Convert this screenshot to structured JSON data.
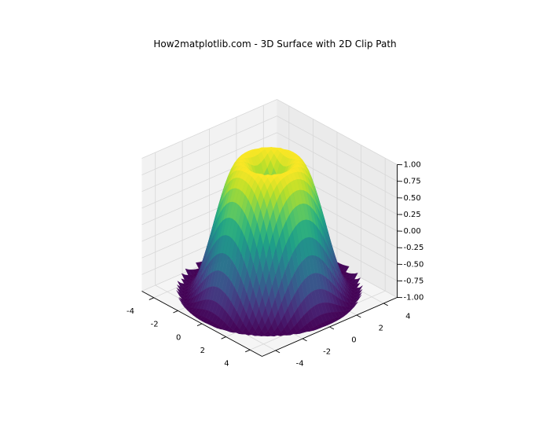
{
  "chart_data": {
    "type": "surface3d",
    "title": "How2matplotlib.com - 3D Surface with 2D Clip Path",
    "function": "z = sin(sqrt(x^2 + y^2))",
    "clip": "circle, radius 5",
    "colormap": "viridis",
    "x_ticks": [
      "-4",
      "-2",
      "0",
      "2",
      "4"
    ],
    "y_ticks": [
      "-4",
      "-2",
      "0",
      "2",
      "4"
    ],
    "z_ticks": [
      "-1.00",
      "-0.75",
      "-0.50",
      "-0.25",
      "0.00",
      "0.25",
      "0.50",
      "0.75",
      "1.00"
    ],
    "xlim": [
      -5,
      5
    ],
    "ylim": [
      -5,
      5
    ],
    "zlim": [
      -1,
      1
    ],
    "grid": true
  }
}
